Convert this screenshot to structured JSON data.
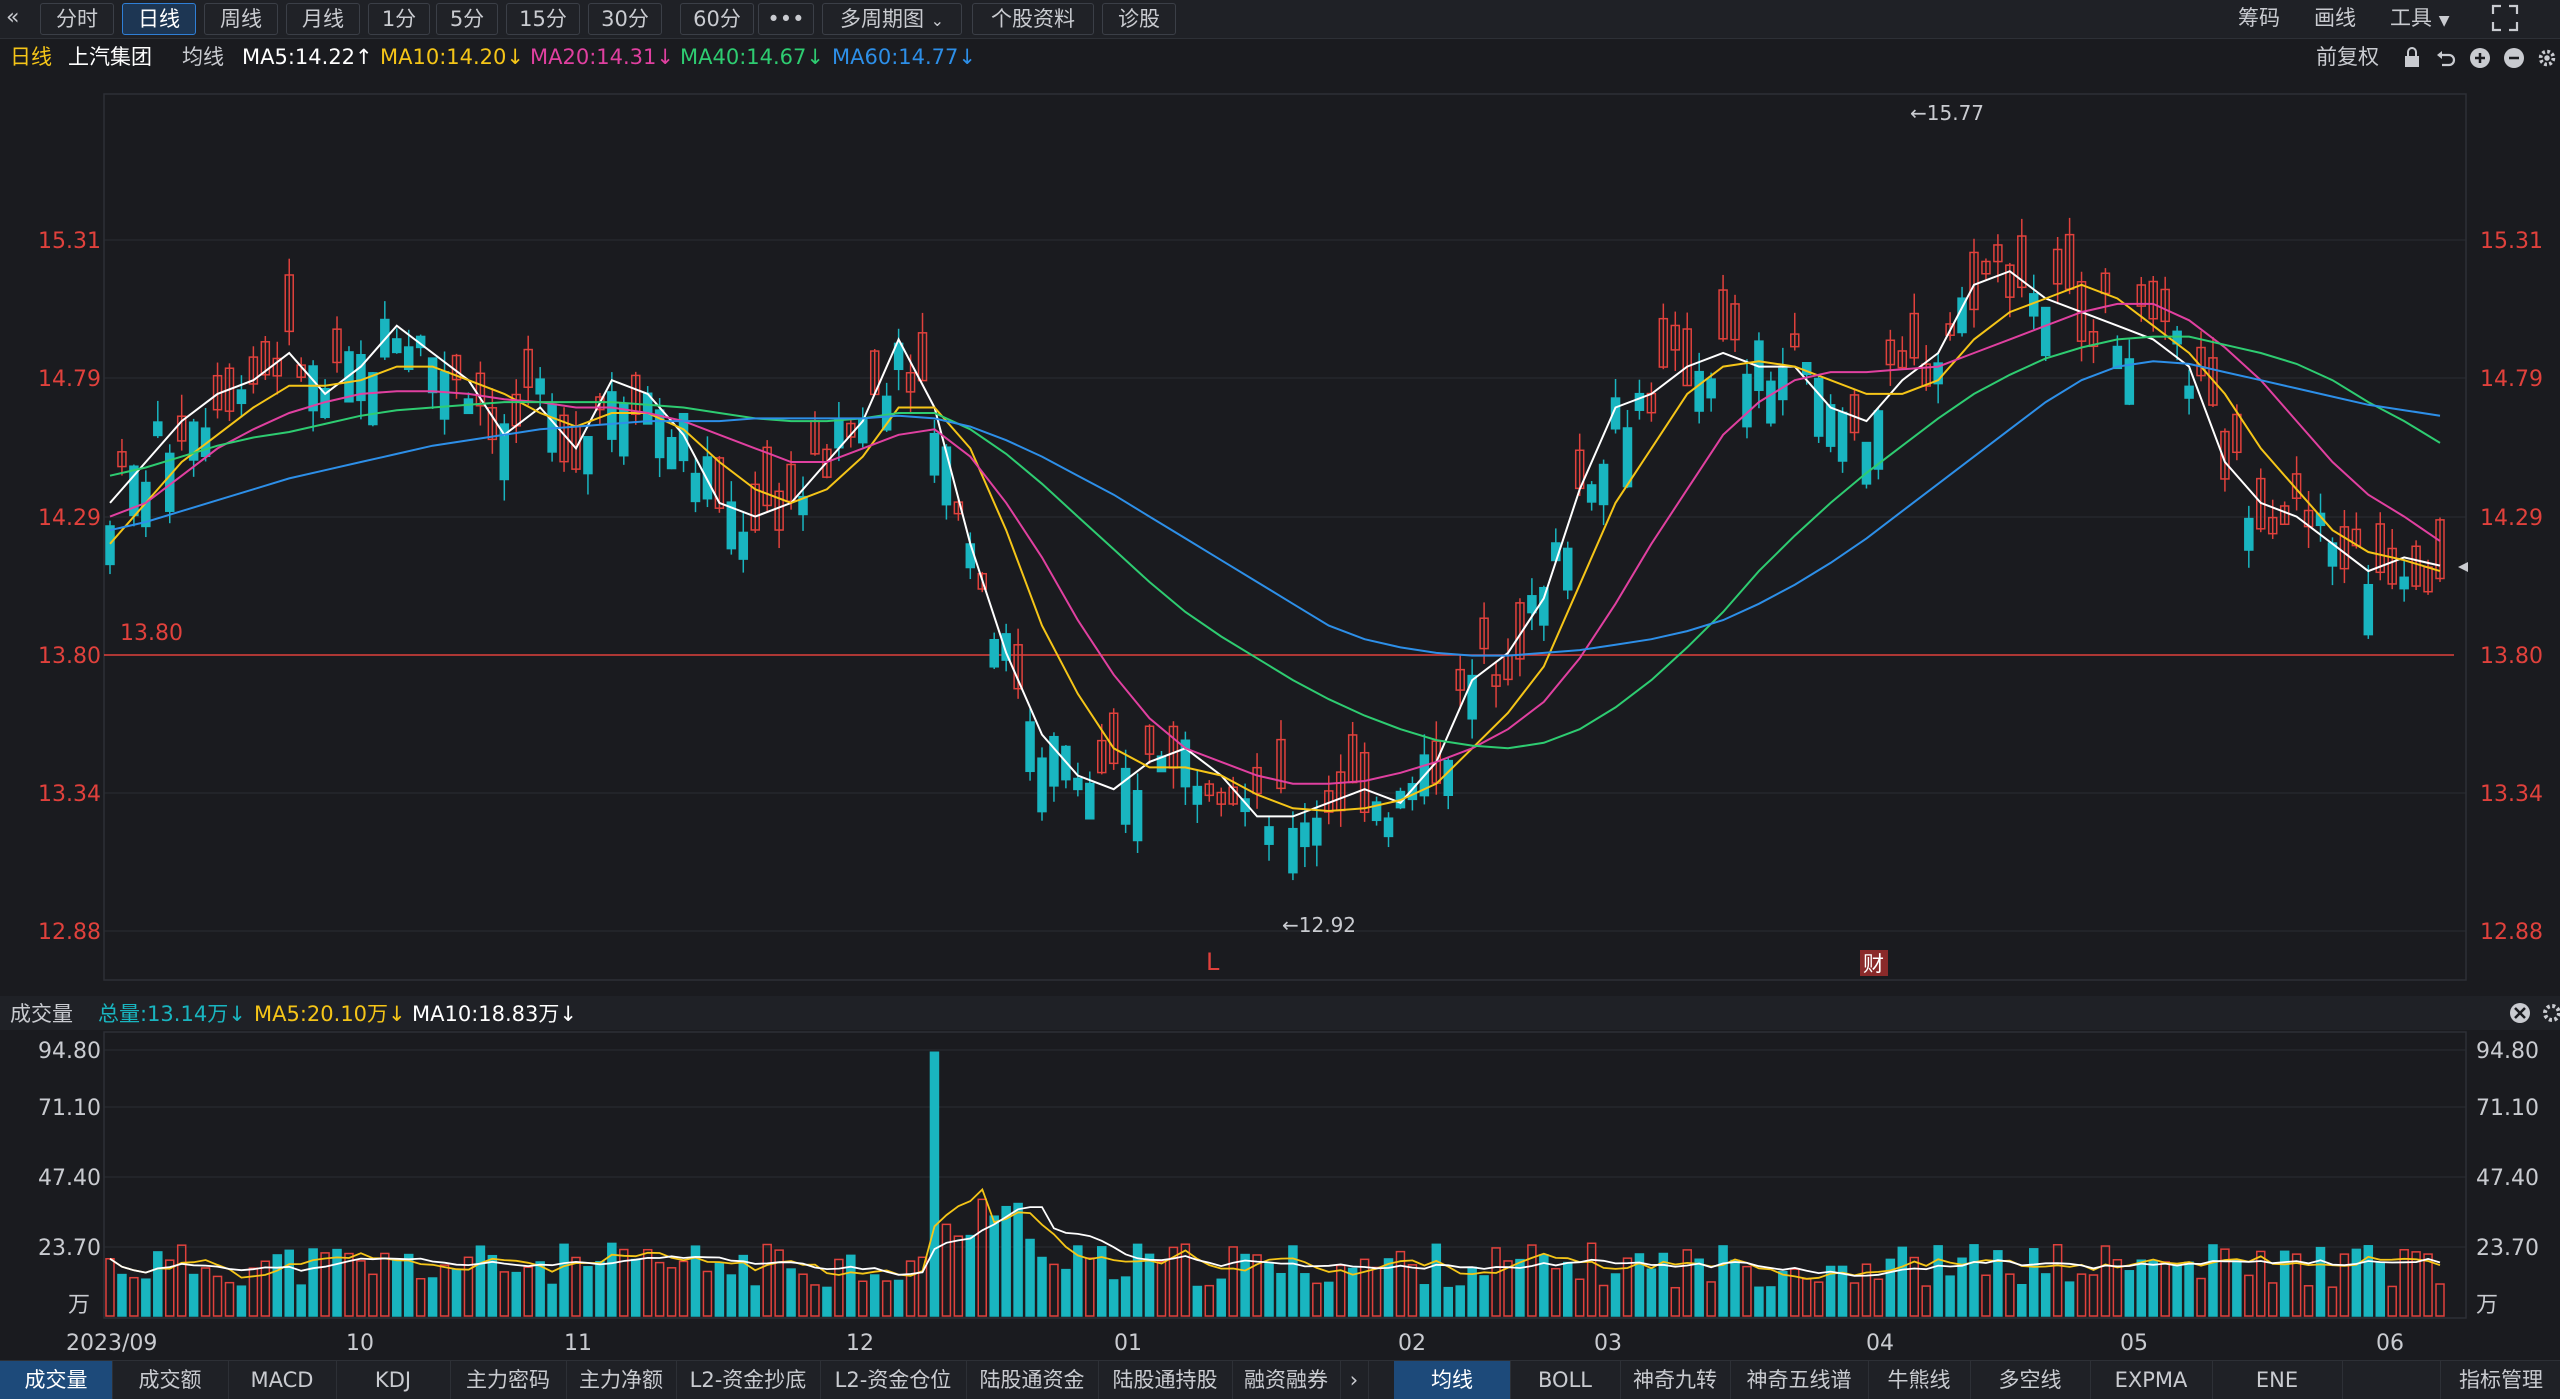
{
  "toolbar": {
    "back_icon": "«",
    "tabs": [
      "分时",
      "日线",
      "周线",
      "月线",
      "1分",
      "5分",
      "15分",
      "30分",
      "60分",
      "•••",
      "多周期图",
      "个股资料",
      "诊股"
    ],
    "active_tab": "日线",
    "right_items": [
      "筹码",
      "画线",
      "工具"
    ],
    "expand_icon": "expand-icon"
  },
  "legend": {
    "period": "日线",
    "stock_name": "上汽集团",
    "ma_label": "均线",
    "ma5": "MA5:14.22↑",
    "ma10": "MA10:14.20↓",
    "ma20": "MA20:14.31↓",
    "ma40": "MA40:14.67↓",
    "ma60": "MA60:14.77↓",
    "adjust": "前复权",
    "colors": {
      "ma5": "#ffffff",
      "ma10": "#f5c518",
      "ma20": "#e040a0",
      "ma40": "#2ecc71",
      "ma60": "#2d8fe8",
      "up": "#e0413c",
      "down": "#19b5c0"
    }
  },
  "price_axis": {
    "ticks": [
      "15.31",
      "14.79",
      "14.29",
      "13.80",
      "13.34",
      "12.88"
    ],
    "ref_line": "13.80",
    "high_mark": "←15.77",
    "low_mark": "←12.92",
    "marker_L": "L",
    "marker_cai": "财"
  },
  "volume_panel": {
    "title": "成交量",
    "total": "总量:13.14万↓",
    "ma5": "MA5:20.10万↓",
    "ma10": "MA10:18.83万↓",
    "ticks": [
      "94.80",
      "71.10",
      "47.40",
      "23.70",
      "万"
    ]
  },
  "x_axis": {
    "labels": [
      "2023/09",
      "10",
      "11",
      "12",
      "01",
      "02",
      "03",
      "04",
      "05",
      "06"
    ]
  },
  "bottom_tabs": {
    "left": [
      "成交量",
      "成交额",
      "MACD",
      "KDJ",
      "主力密码",
      "主力净额",
      "L2-资金抄底",
      "L2-资金仓位",
      "陆股通资金",
      "陆股通持股",
      "融资融券"
    ],
    "right": [
      "均线",
      "BOLL",
      "神奇九转",
      "神奇五线谱",
      "牛熊线",
      "多空线",
      "EXPMA",
      "ENE"
    ],
    "manage": "指标管理",
    "active_left": "成交量",
    "active_right": "均线"
  },
  "chart_data": {
    "type": "candlestick",
    "ylim": [
      12.7,
      15.95
    ],
    "volume_ylim": [
      0,
      94.8
    ],
    "ma_series": [
      {
        "name": "MA5",
        "values": [
          14.45,
          14.6,
          14.75,
          14.85,
          14.9,
          15.0,
          14.85,
          14.95,
          15.1,
          15.0,
          14.9,
          14.7,
          14.8,
          14.65,
          14.9,
          14.85,
          14.7,
          14.45,
          14.4,
          14.45,
          14.6,
          14.75,
          15.05,
          14.8,
          14.3,
          13.9,
          13.6,
          13.45,
          13.4,
          13.5,
          13.55,
          13.45,
          13.3,
          13.3,
          13.35,
          13.4,
          13.35,
          13.5,
          13.8,
          13.9,
          14.1,
          14.5,
          14.8,
          14.85,
          14.95,
          15.0,
          14.95,
          14.95,
          14.8,
          14.75,
          14.9,
          15.0,
          15.25,
          15.3,
          15.2,
          15.15,
          15.1,
          15.05,
          14.95,
          14.6,
          14.45,
          14.4,
          14.3,
          14.2,
          14.25,
          14.22
        ]
      },
      {
        "name": "MA10",
        "values": [
          14.3,
          14.45,
          14.6,
          14.7,
          14.8,
          14.88,
          14.88,
          14.9,
          14.95,
          14.95,
          14.9,
          14.85,
          14.78,
          14.73,
          14.78,
          14.78,
          14.72,
          14.6,
          14.5,
          14.45,
          14.5,
          14.62,
          14.8,
          14.8,
          14.65,
          14.35,
          14.0,
          13.75,
          13.55,
          13.48,
          13.48,
          13.45,
          13.38,
          13.33,
          13.32,
          13.33,
          13.36,
          13.42,
          13.55,
          13.68,
          13.85,
          14.15,
          14.45,
          14.65,
          14.85,
          14.95,
          14.97,
          14.95,
          14.9,
          14.85,
          14.85,
          14.9,
          15.05,
          15.15,
          15.2,
          15.25,
          15.2,
          15.1,
          15.0,
          14.85,
          14.65,
          14.5,
          14.35,
          14.27,
          14.24,
          14.2
        ]
      },
      {
        "name": "MA20",
        "values": [
          14.4,
          14.45,
          14.55,
          14.65,
          14.72,
          14.78,
          14.82,
          14.85,
          14.86,
          14.86,
          14.85,
          14.83,
          14.82,
          14.8,
          14.8,
          14.78,
          14.75,
          14.7,
          14.65,
          14.6,
          14.6,
          14.65,
          14.7,
          14.72,
          14.62,
          14.45,
          14.25,
          14.02,
          13.82,
          13.66,
          13.55,
          13.5,
          13.45,
          13.42,
          13.42,
          13.43,
          13.46,
          13.5,
          13.55,
          13.62,
          13.72,
          13.88,
          14.08,
          14.3,
          14.5,
          14.7,
          14.82,
          14.9,
          14.93,
          14.93,
          14.94,
          14.95,
          15.0,
          15.05,
          15.1,
          15.15,
          15.18,
          15.18,
          15.12,
          15.02,
          14.9,
          14.75,
          14.6,
          14.48,
          14.4,
          14.31
        ]
      },
      {
        "name": "MA40",
        "values": [
          14.55,
          14.58,
          14.62,
          14.66,
          14.69,
          14.71,
          14.74,
          14.77,
          14.79,
          14.8,
          14.81,
          14.82,
          14.82,
          14.82,
          14.82,
          14.81,
          14.8,
          14.78,
          14.76,
          14.75,
          14.75,
          14.76,
          14.78,
          14.78,
          14.72,
          14.63,
          14.52,
          14.4,
          14.28,
          14.16,
          14.05,
          13.96,
          13.88,
          13.8,
          13.73,
          13.67,
          13.62,
          13.58,
          13.56,
          13.55,
          13.57,
          13.62,
          13.7,
          13.8,
          13.92,
          14.05,
          14.2,
          14.33,
          14.45,
          14.56,
          14.66,
          14.76,
          14.85,
          14.92,
          14.98,
          15.02,
          15.05,
          15.06,
          15.06,
          15.03,
          15.0,
          14.96,
          14.9,
          14.82,
          14.75,
          14.67
        ]
      },
      {
        "name": "MA60",
        "values": [
          14.35,
          14.38,
          14.42,
          14.46,
          14.5,
          14.54,
          14.57,
          14.6,
          14.63,
          14.66,
          14.68,
          14.7,
          14.72,
          14.73,
          14.74,
          14.75,
          14.75,
          14.75,
          14.76,
          14.76,
          14.76,
          14.76,
          14.77,
          14.76,
          14.73,
          14.68,
          14.62,
          14.55,
          14.48,
          14.4,
          14.32,
          14.24,
          14.16,
          14.08,
          14.0,
          13.95,
          13.92,
          13.9,
          13.89,
          13.89,
          13.9,
          13.91,
          13.93,
          13.95,
          13.98,
          14.02,
          14.08,
          14.15,
          14.23,
          14.32,
          14.42,
          14.52,
          14.62,
          14.72,
          14.82,
          14.9,
          14.95,
          14.97,
          14.96,
          14.93,
          14.9,
          14.87,
          14.84,
          14.81,
          14.79,
          14.77
        ]
      }
    ]
  }
}
